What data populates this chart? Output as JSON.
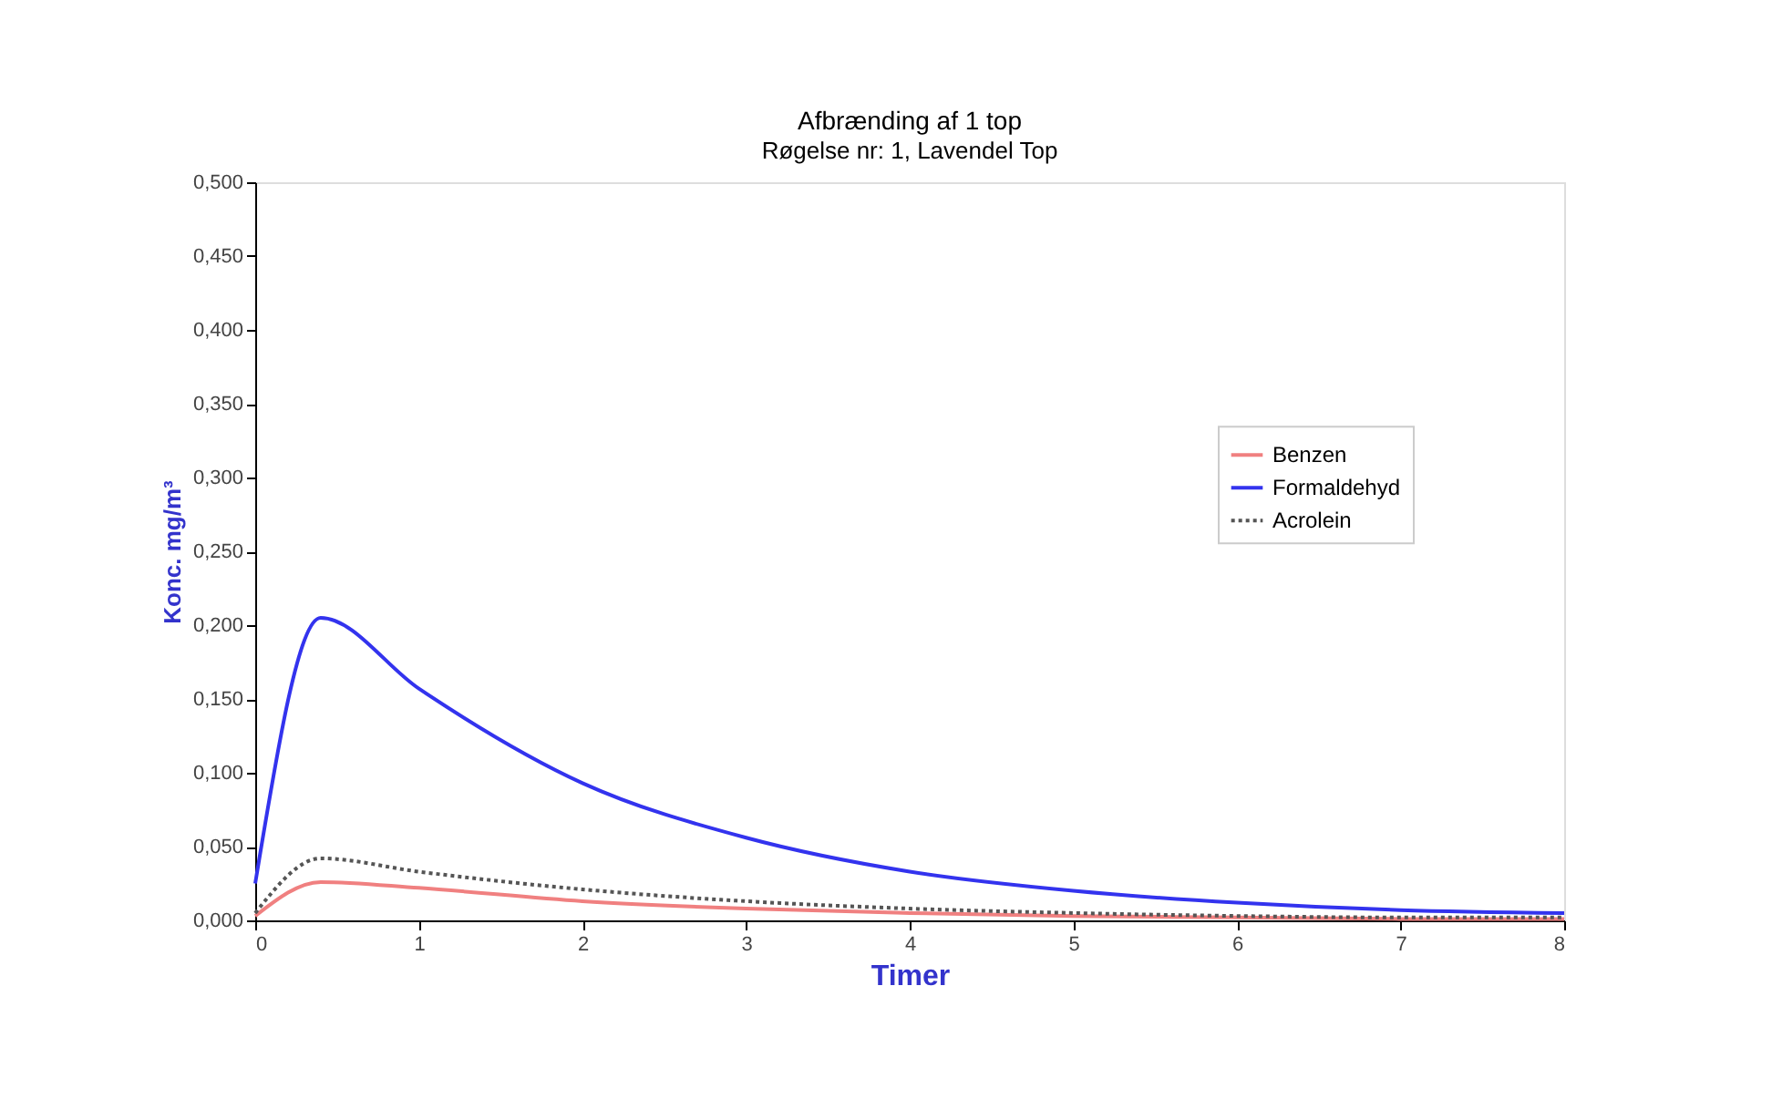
{
  "chart_data": {
    "type": "line",
    "title": "Afbrænding af 1 top",
    "subtitle": "Røgelse nr: 1, Lavendel Top",
    "xlabel": "Timer",
    "ylabel": "Konc. mg/m³",
    "series": [
      {
        "name": "Benzen",
        "color": "#f08080",
        "line_style": "solid",
        "x": [
          0,
          0.4,
          1,
          2,
          3,
          4,
          5,
          6,
          7,
          8
        ],
        "values": [
          0.003,
          0.026,
          0.022,
          0.013,
          0.008,
          0.005,
          0.003,
          0.002,
          0.001,
          0.001
        ]
      },
      {
        "name": "Formaldehyd",
        "color": "#3333ee",
        "line_style": "solid",
        "x": [
          0,
          0.4,
          1,
          2,
          3,
          4,
          5,
          6,
          7,
          8
        ],
        "values": [
          0.025,
          0.205,
          0.157,
          0.093,
          0.056,
          0.033,
          0.02,
          0.012,
          0.007,
          0.005
        ]
      },
      {
        "name": "Acrolein",
        "color": "#555555",
        "line_style": "dotted",
        "x": [
          0,
          0.4,
          1,
          2,
          3,
          4,
          5,
          6,
          7,
          8
        ],
        "values": [
          0.005,
          0.042,
          0.033,
          0.021,
          0.013,
          0.008,
          0.005,
          0.003,
          0.002,
          0.002
        ]
      }
    ],
    "xlim": [
      0,
      8
    ],
    "xticks": [
      0,
      1,
      2,
      3,
      4,
      5,
      6,
      7,
      8
    ],
    "ylim": [
      0,
      0.5
    ],
    "yticks": [
      {
        "value": 0,
        "label": "0,000"
      },
      {
        "value": 0.05,
        "label": "0,050"
      },
      {
        "value": 0.1,
        "label": "0,100"
      },
      {
        "value": 0.15,
        "label": "0,150"
      },
      {
        "value": 0.2,
        "label": "0,200"
      },
      {
        "value": 0.25,
        "label": "0,250"
      },
      {
        "value": 0.3,
        "label": "0,300"
      },
      {
        "value": 0.35,
        "label": "0,350"
      },
      {
        "value": 0.4,
        "label": "0,400"
      },
      {
        "value": 0.45,
        "label": "0,450"
      },
      {
        "value": 0.5,
        "label": "0,500"
      }
    ],
    "grid": false,
    "legend": "right",
    "marker": "none"
  }
}
